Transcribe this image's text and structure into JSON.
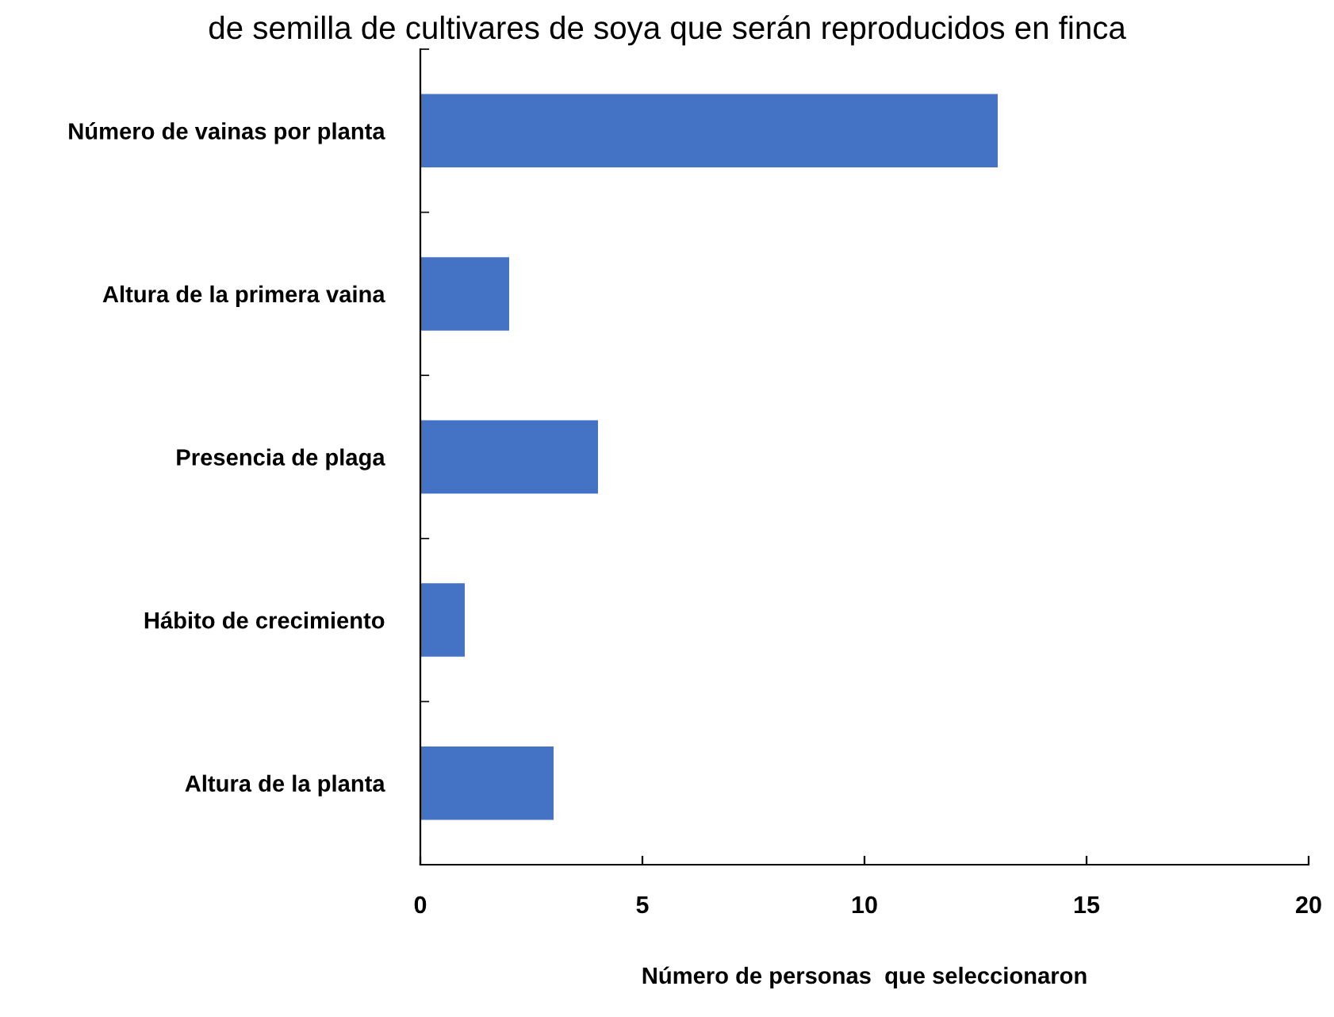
{
  "chart_data": {
    "type": "bar",
    "orientation": "horizontal",
    "title": "de semilla de cultivares de soya que serán reproducidos en finca",
    "xlabel": "Número de personas  que seleccionaron",
    "categories": [
      "Número de vainas por planta",
      "Altura de la primera vaina",
      "Presencia de plaga",
      "Hábito de crecimiento",
      "Altura de la planta"
    ],
    "values": [
      13,
      2,
      4,
      1,
      3
    ],
    "color": "#4472c4",
    "xlim": [
      0,
      20
    ],
    "xticks": [
      0,
      5,
      10,
      15,
      20
    ],
    "grid": false
  }
}
